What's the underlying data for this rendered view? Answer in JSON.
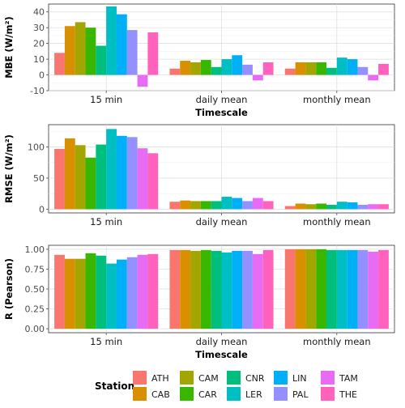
{
  "chart_data": [
    {
      "type": "bar",
      "id": "mbe",
      "ylabel": "MBE (W/m²)",
      "xlabel": "Timescale",
      "ylim": [
        -10,
        45
      ],
      "yticks": [
        -10,
        0,
        10,
        20,
        30,
        40
      ],
      "categories": [
        "15 min",
        "daily mean",
        "monthly mean"
      ],
      "series": [
        {
          "name": "ATH",
          "values": [
            14,
            4,
            4
          ]
        },
        {
          "name": "CAB",
          "values": [
            31,
            9,
            8
          ]
        },
        {
          "name": "CAM",
          "values": [
            33.5,
            8,
            8
          ]
        },
        {
          "name": "CAR",
          "values": [
            30,
            9.5,
            8
          ]
        },
        {
          "name": "CNR",
          "values": [
            18.5,
            5,
            4.5
          ]
        },
        {
          "name": "LER",
          "values": [
            43.5,
            10,
            11
          ]
        },
        {
          "name": "LIN",
          "values": [
            38.5,
            12.5,
            10
          ]
        },
        {
          "name": "PAL",
          "values": [
            28.5,
            6.5,
            5
          ]
        },
        {
          "name": "TAM",
          "values": [
            -7.5,
            -3.5,
            -3.5
          ]
        },
        {
          "name": "THE",
          "values": [
            27,
            8,
            7
          ]
        }
      ]
    },
    {
      "type": "bar",
      "id": "rmse",
      "ylabel": "RMSE (W/m²)",
      "xlabel": "Timescale",
      "ylim": [
        -6,
        136
      ],
      "yticks": [
        0,
        50,
        100
      ],
      "categories": [
        "15 min",
        "daily mean",
        "monthly mean"
      ],
      "series": [
        {
          "name": "ATH",
          "values": [
            97,
            12,
            5
          ]
        },
        {
          "name": "CAB",
          "values": [
            114,
            14,
            9
          ]
        },
        {
          "name": "CAM",
          "values": [
            103,
            13,
            8
          ]
        },
        {
          "name": "CAR",
          "values": [
            83,
            13,
            9
          ]
        },
        {
          "name": "CNR",
          "values": [
            104,
            13,
            7
          ]
        },
        {
          "name": "LER",
          "values": [
            129,
            20,
            12
          ]
        },
        {
          "name": "LIN",
          "values": [
            118,
            18,
            11
          ]
        },
        {
          "name": "PAL",
          "values": [
            116,
            13,
            7
          ]
        },
        {
          "name": "TAM",
          "values": [
            98,
            18,
            8
          ]
        },
        {
          "name": "THE",
          "values": [
            90,
            13,
            8
          ]
        }
      ]
    },
    {
      "type": "bar",
      "id": "r",
      "ylabel": "R (Pearson)",
      "xlabel": "Timescale",
      "ylim": [
        -0.05,
        1.05
      ],
      "yticks": [
        0.0,
        0.25,
        0.5,
        0.75,
        1.0
      ],
      "yticklabels": [
        "0.00",
        "0.25",
        "0.50",
        "0.75",
        "1.00"
      ],
      "categories": [
        "15 min",
        "daily mean",
        "monthly mean"
      ],
      "series": [
        {
          "name": "ATH",
          "values": [
            0.93,
            0.99,
            1.0
          ]
        },
        {
          "name": "CAB",
          "values": [
            0.88,
            0.99,
            1.0
          ]
        },
        {
          "name": "CAM",
          "values": [
            0.88,
            0.98,
            1.0
          ]
        },
        {
          "name": "CAR",
          "values": [
            0.95,
            0.99,
            1.0
          ]
        },
        {
          "name": "CNR",
          "values": [
            0.92,
            0.98,
            0.99
          ]
        },
        {
          "name": "LER",
          "values": [
            0.82,
            0.96,
            0.99
          ]
        },
        {
          "name": "LIN",
          "values": [
            0.87,
            0.98,
            0.99
          ]
        },
        {
          "name": "PAL",
          "values": [
            0.9,
            0.98,
            0.99
          ]
        },
        {
          "name": "TAM",
          "values": [
            0.93,
            0.94,
            0.97
          ]
        },
        {
          "name": "THE",
          "values": [
            0.94,
            0.99,
            0.99
          ]
        }
      ]
    }
  ],
  "legend": {
    "title": "Station",
    "placement": "bottom",
    "items": [
      {
        "name": "ATH",
        "color": "#F8766D"
      },
      {
        "name": "CAB",
        "color": "#D89000"
      },
      {
        "name": "CAM",
        "color": "#A3A500"
      },
      {
        "name": "CAR",
        "color": "#39B600"
      },
      {
        "name": "CNR",
        "color": "#00BF7D"
      },
      {
        "name": "LER",
        "color": "#00BFC4"
      },
      {
        "name": "LIN",
        "color": "#00B0F6"
      },
      {
        "name": "PAL",
        "color": "#9590FF"
      },
      {
        "name": "TAM",
        "color": "#E76BF3"
      },
      {
        "name": "THE",
        "color": "#FF62BC"
      }
    ]
  }
}
